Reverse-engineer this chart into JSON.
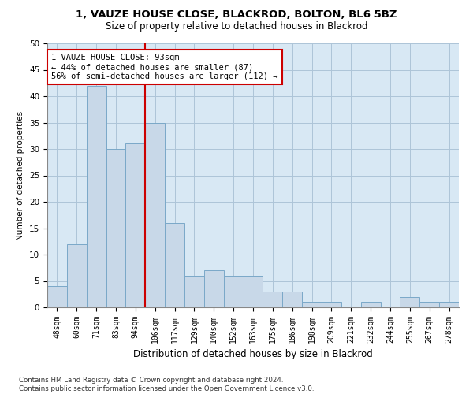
{
  "title_line1": "1, VAUZE HOUSE CLOSE, BLACKROD, BOLTON, BL6 5BZ",
  "title_line2": "Size of property relative to detached houses in Blackrod",
  "xlabel": "Distribution of detached houses by size in Blackrod",
  "ylabel": "Number of detached properties",
  "categories": [
    "48sqm",
    "60sqm",
    "71sqm",
    "83sqm",
    "94sqm",
    "106sqm",
    "117sqm",
    "129sqm",
    "140sqm",
    "152sqm",
    "163sqm",
    "175sqm",
    "186sqm",
    "198sqm",
    "209sqm",
    "221sqm",
    "232sqm",
    "244sqm",
    "255sqm",
    "267sqm",
    "278sqm"
  ],
  "values": [
    4,
    12,
    42,
    30,
    31,
    35,
    16,
    6,
    7,
    6,
    6,
    3,
    3,
    1,
    1,
    0,
    1,
    0,
    2,
    1,
    1
  ],
  "bar_color": "#c8d8e8",
  "bar_edge_color": "#7aa8c8",
  "grid_color": "#adc4d8",
  "bg_color": "#d8e8f4",
  "vline_color": "#cc0000",
  "vline_x_index": 4,
  "annotation_text": "1 VAUZE HOUSE CLOSE: 93sqm\n← 44% of detached houses are smaller (87)\n56% of semi-detached houses are larger (112) →",
  "annotation_box_color": "#cc0000",
  "footer_text": "Contains HM Land Registry data © Crown copyright and database right 2024.\nContains public sector information licensed under the Open Government Licence v3.0.",
  "ylim": [
    0,
    50
  ],
  "yticks": [
    0,
    5,
    10,
    15,
    20,
    25,
    30,
    35,
    40,
    45,
    50
  ],
  "title1_fontsize": 9.5,
  "title2_fontsize": 8.5,
  "ylabel_fontsize": 7.5,
  "xlabel_fontsize": 8.5,
  "tick_fontsize": 7,
  "annotation_fontsize": 7.5,
  "footer_fontsize": 6.2
}
